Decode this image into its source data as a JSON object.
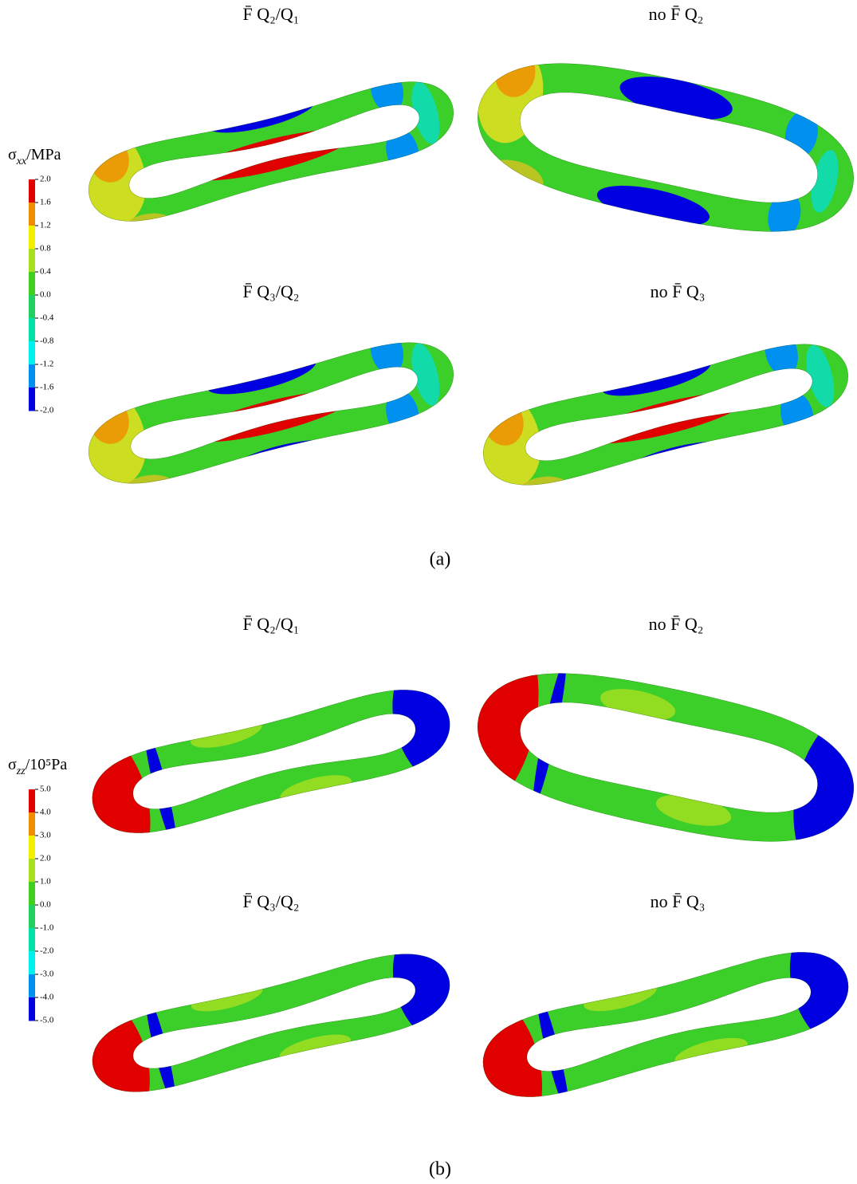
{
  "panel_a": {
    "colorbar": {
      "label": {
        "symbol": "σ",
        "subscript": "xx",
        "unit": "/MPa"
      },
      "ticks": [
        "2.0",
        "1.6",
        "1.2",
        "0.8",
        "0.4",
        "0.0",
        "-0.4",
        "-0.8",
        "-1.2",
        "-1.6",
        "-2.0"
      ],
      "colors": [
        "#e00000",
        "#f08c00",
        "#f0f000",
        "#a8e020",
        "#40d020",
        "#20d060",
        "#00e0a8",
        "#00f0f0",
        "#0090f0",
        "#0000e0"
      ]
    },
    "plots": [
      {
        "title": "F̄ Q₂/Q₁"
      },
      {
        "title": "no F̄ Q₂"
      },
      {
        "title": "F̄ Q₃/Q₂"
      },
      {
        "title": "no F̄ Q₃"
      }
    ],
    "caption": "(a)"
  },
  "panel_b": {
    "colorbar": {
      "label": {
        "symbol": "σ",
        "subscript": "zz",
        "unit": "/10⁵Pa"
      },
      "ticks": [
        "5.0",
        "4.0",
        "3.0",
        "2.0",
        "1.0",
        "0.0",
        "-1.0",
        "-2.0",
        "-3.0",
        "-4.0",
        "-5.0"
      ],
      "colors": [
        "#e00000",
        "#f08c00",
        "#f0f000",
        "#a8e020",
        "#40d020",
        "#20d060",
        "#00e0a8",
        "#00f0f0",
        "#0090f0",
        "#0000e0"
      ]
    },
    "plots": [
      {
        "title": "F̄ Q₂/Q₁"
      },
      {
        "title": "no F̄ Q₂"
      },
      {
        "title": "F̄ Q₃/Q₂"
      },
      {
        "title": "no F̄ Q₃"
      }
    ],
    "caption": "(b)"
  }
}
